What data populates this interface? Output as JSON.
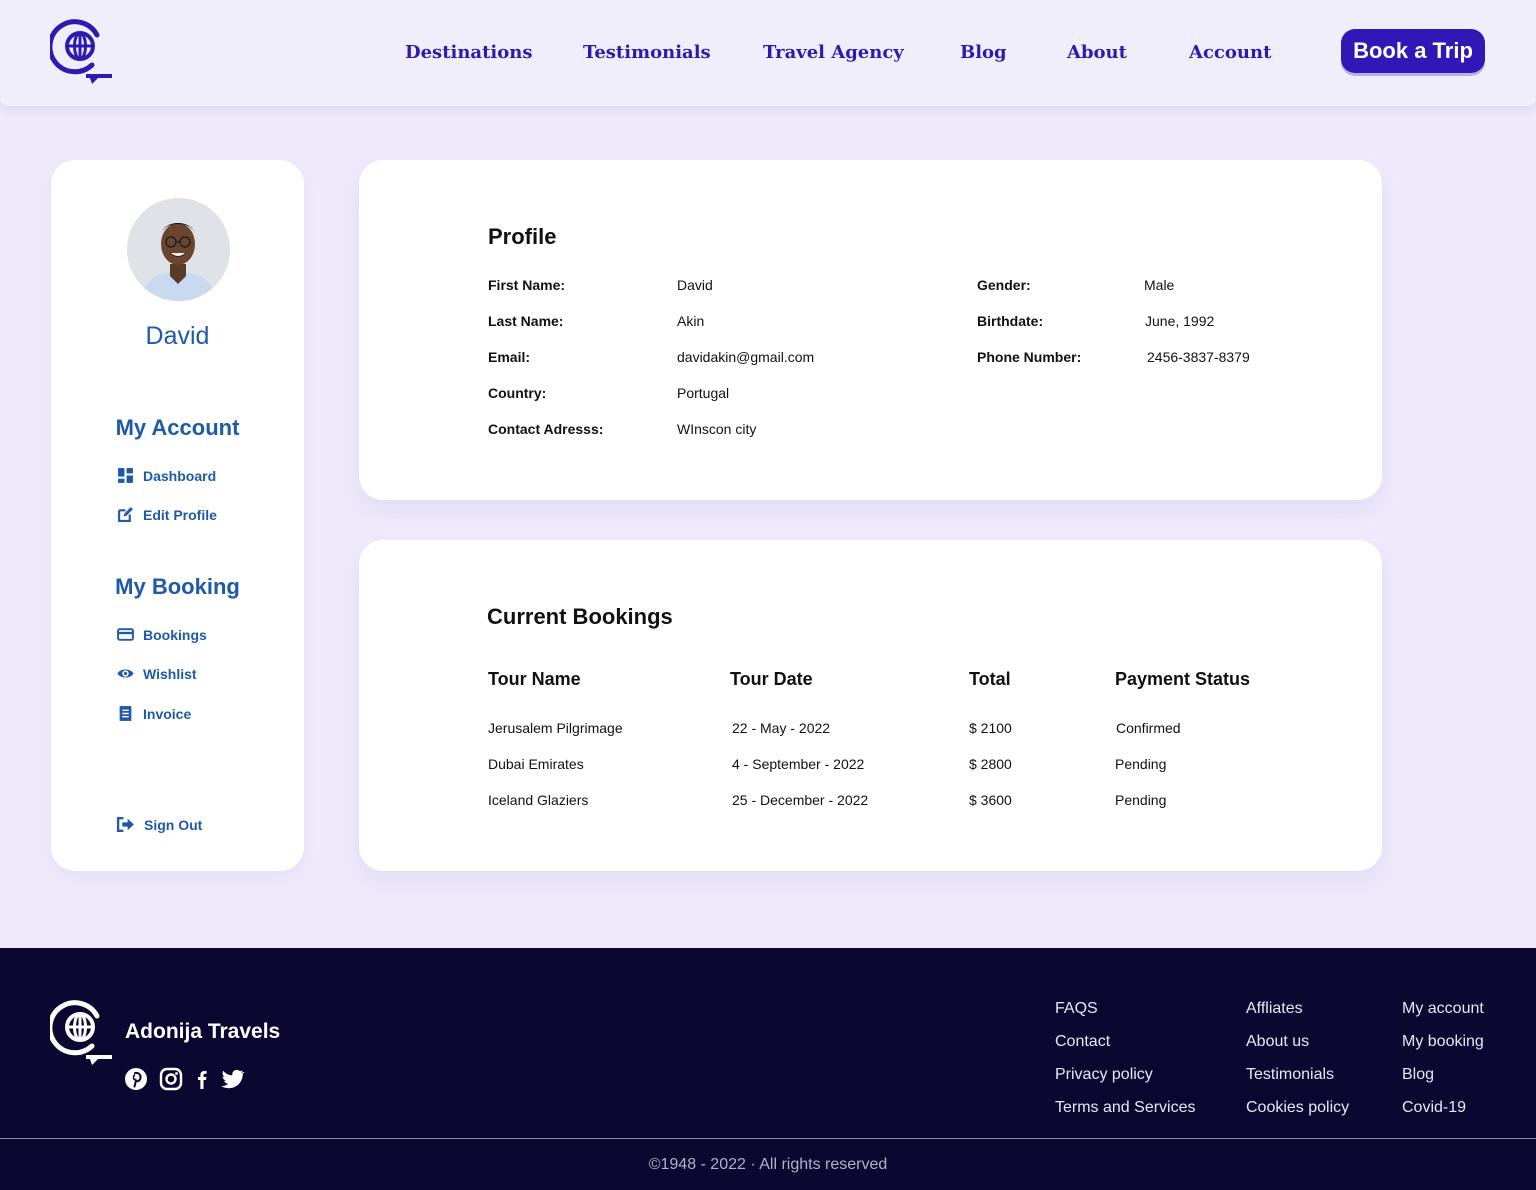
{
  "header": {
    "nav": [
      "Destinations",
      "Testimonials",
      "Travel Agency",
      "Blog",
      "About",
      "Account"
    ],
    "cta": "Book a Trip",
    "brand_color": "#2d1bb0"
  },
  "sidebar": {
    "name": "David",
    "my_account": {
      "heading": "My Account",
      "items": [
        {
          "label": "Dashboard",
          "icon": "dashboard-icon"
        },
        {
          "label": "Edit Profile",
          "icon": "edit-icon"
        }
      ]
    },
    "my_booking": {
      "heading": "My Booking",
      "items": [
        {
          "label": "Bookings",
          "icon": "credit-card-icon"
        },
        {
          "label": "Wishlist",
          "icon": "eye-icon"
        },
        {
          "label": "Invoice",
          "icon": "invoice-icon"
        }
      ]
    },
    "sign_out": "Sign Out",
    "accent": "#1f5aa8"
  },
  "profile": {
    "title": "Profile",
    "left": [
      {
        "label": "First Name:",
        "value": "David"
      },
      {
        "label": "Last Name:",
        "value": "Akin"
      },
      {
        "label": "Email:",
        "value": "davidakin@gmail.com"
      },
      {
        "label": "Country:",
        "value": "Portugal"
      },
      {
        "label": "Contact Adresss:",
        "value": "WInscon city"
      }
    ],
    "right": [
      {
        "label": "Gender:",
        "value": "Male"
      },
      {
        "label": "Birthdate:",
        "value": "June, 1992"
      },
      {
        "label": "Phone Number:",
        "value": "2456-3837-8379"
      }
    ]
  },
  "bookings": {
    "title": "Current Bookings",
    "columns": [
      "Tour Name",
      "Tour Date",
      "Total",
      "Payment Status"
    ],
    "rows": [
      [
        "Jerusalem Pilgrimage",
        "22 - May - 2022",
        "$ 2100",
        "Confirmed"
      ],
      [
        "Dubai Emirates",
        "4 - September - 2022",
        "$ 2800",
        "Pending"
      ],
      [
        "Iceland Glaziers",
        "25 - December - 2022",
        "$ 3600",
        "Pending"
      ]
    ]
  },
  "footer": {
    "brand": "Adonija Travels",
    "social": [
      "pinterest-icon",
      "instagram-icon",
      "facebook-icon",
      "twitter-icon"
    ],
    "columns": [
      [
        "FAQS",
        "Contact",
        "Privacy policy",
        "Terms and Services"
      ],
      [
        "Affliates",
        "About us",
        "Testimonials",
        "Cookies policy"
      ],
      [
        "My account",
        "My booking",
        "Blog",
        "Covid-19"
      ]
    ],
    "copyright": "©1948 - 2022 · All rights reserved",
    "background": "#0b0730"
  }
}
